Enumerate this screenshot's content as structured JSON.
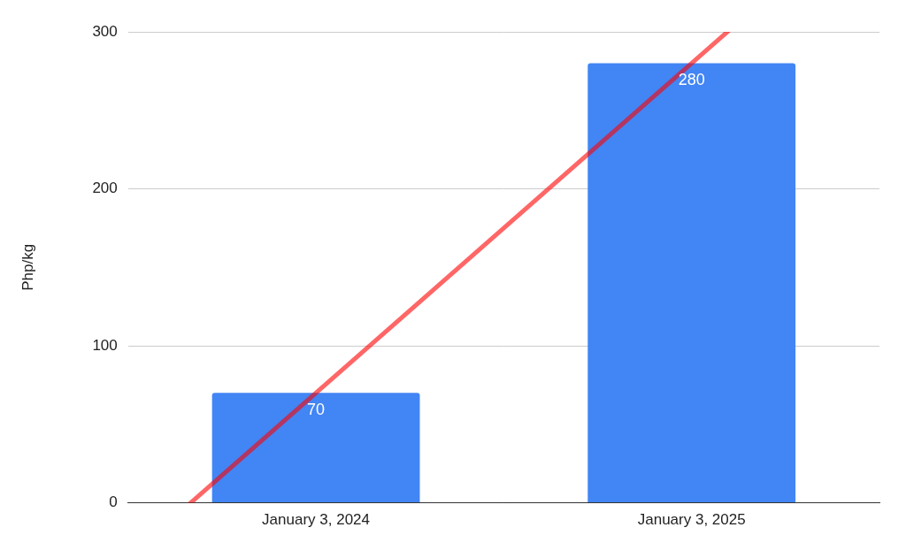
{
  "chart_data": {
    "type": "bar",
    "y_label": "Php/kg",
    "categories": [
      "January 3, 2024",
      "January 3, 2025"
    ],
    "series": [
      {
        "type": "bar",
        "color": "#4285f4",
        "values": [
          70,
          280
        ],
        "data_labels": true
      },
      {
        "type": "line",
        "color": "#ff0000",
        "values": [
          70,
          280
        ],
        "line_style": "solid"
      }
    ],
    "ylim": [
      0,
      300
    ],
    "yticks": [
      0,
      100,
      200,
      300
    ],
    "grid": true
  }
}
